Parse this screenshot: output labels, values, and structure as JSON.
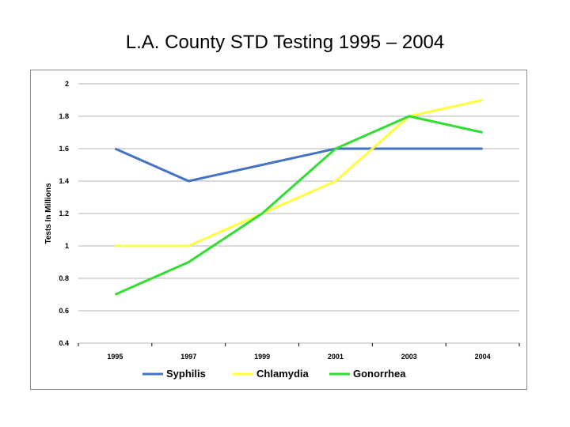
{
  "slide": {
    "title": "L.A. County STD Testing 1995 – 2004"
  },
  "chart_data": {
    "type": "line",
    "title": "L.A. County STD Testing 1995 – 2004",
    "xlabel": "",
    "ylabel": "Tests In Millions",
    "categories": [
      "1995",
      "1997",
      "1999",
      "2001",
      "2003",
      "2004"
    ],
    "ylim": [
      0.4,
      2
    ],
    "yticks": [
      0.4,
      0.6,
      0.8,
      1,
      1.2,
      1.4,
      1.6,
      1.8,
      2
    ],
    "ytick_labels": [
      "0.4",
      "0.6",
      "0.8",
      "1",
      "1.2",
      "1.4",
      "1.6",
      "1.8",
      "2"
    ],
    "grid": true,
    "legend_position": "bottom",
    "series": [
      {
        "name": "Syphilis",
        "color": "#4472c4",
        "values": [
          1.6,
          1.4,
          1.5,
          1.6,
          1.6,
          1.6
        ]
      },
      {
        "name": "Chlamydia",
        "color": "#ffff40",
        "values": [
          1.0,
          1.0,
          1.2,
          1.4,
          1.8,
          1.9
        ]
      },
      {
        "name": "Gonorrhea",
        "color": "#33dd33",
        "values": [
          0.7,
          0.9,
          1.2,
          1.6,
          1.8,
          1.7
        ]
      }
    ]
  }
}
